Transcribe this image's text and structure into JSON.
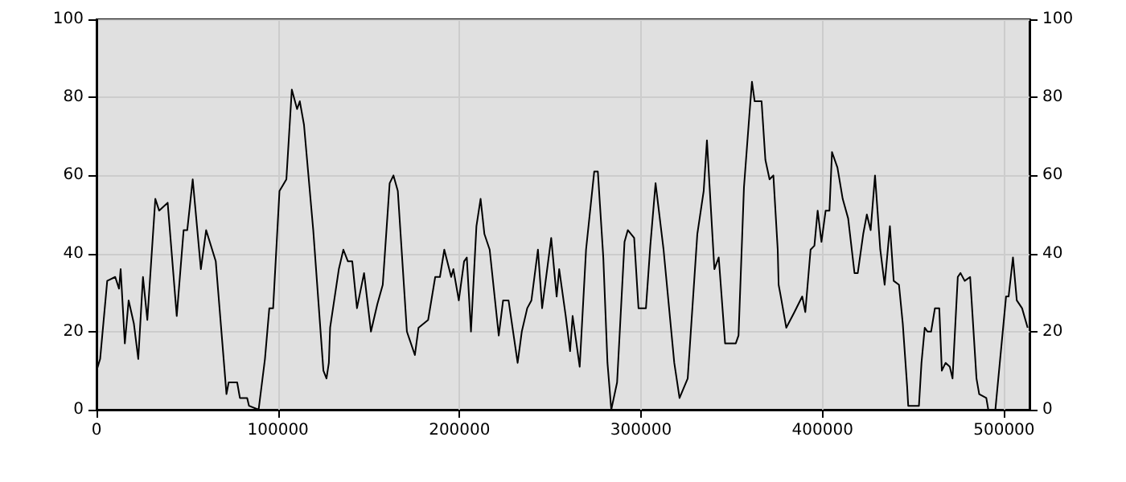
{
  "chart_data": {
    "type": "line",
    "marker": "none",
    "grid": true,
    "xlim": [
      0,
      514000
    ],
    "xticks": [
      0,
      100000,
      200000,
      300000,
      400000,
      500000
    ],
    "ylim": [
      0,
      100
    ],
    "yticks": [
      0,
      20,
      40,
      60,
      80,
      100
    ],
    "y2lim": [
      0,
      100
    ],
    "y2ticks": [
      0,
      20,
      40,
      60,
      80,
      100
    ],
    "series": [
      {
        "color": "#000000",
        "x": [
          0,
          2000,
          5900,
          10300,
          12400,
          13300,
          15600,
          17700,
          20600,
          23000,
          25600,
          28000,
          32400,
          34500,
          39200,
          44200,
          48000,
          50000,
          53000,
          57500,
          60400,
          65700,
          71600,
          72800,
          77500,
          79000,
          83000,
          84000,
          89300,
          92800,
          95200,
          97300,
          100800,
          104600,
          107600,
          110500,
          112000,
          114300,
          119400,
          125000,
          126700,
          128000,
          128700,
          133500,
          136000,
          138500,
          140900,
          143500,
          147400,
          151200,
          154700,
          157700,
          161500,
          163600,
          166000,
          171000,
          175400,
          177400,
          182700,
          186600,
          189200,
          191600,
          195400,
          196600,
          199600,
          202500,
          204000,
          206300,
          209300,
          211600,
          213700,
          216600,
          221600,
          224000,
          227000,
          232000,
          234300,
          237300,
          239600,
          243200,
          245500,
          250500,
          253500,
          254900,
          258500,
          260900,
          262300,
          266200,
          269700,
          274200,
          276200,
          279200,
          281500,
          283600,
          286800,
          290900,
          292700,
          296200,
          298600,
          302700,
          305100,
          308000,
          312400,
          318300,
          321200,
          325700,
          331000,
          334500,
          336300,
          340400,
          342800,
          346300,
          352200,
          353700,
          356700,
          359600,
          361100,
          362600,
          366400,
          368500,
          370800,
          372900,
          375300,
          375800,
          377000,
          380000,
          384500,
          388800,
          390500,
          393400,
          395500,
          397300,
          399400,
          401700,
          403800,
          405200,
          408200,
          411100,
          414100,
          417600,
          419400,
          422400,
          424400,
          426500,
          428900,
          431800,
          434200,
          437100,
          439200,
          442100,
          444200,
          446600,
          447200,
          453100,
          454500,
          456300,
          457800,
          459800,
          461900,
          464300,
          465700,
          467800,
          470100,
          471600,
          474500,
          476000,
          478300,
          481300,
          484800,
          486300,
          490200,
          491300,
          495200,
          501100,
          502500,
          504900,
          507000,
          509900,
          513000
        ],
        "values": [
          10,
          13,
          33,
          34,
          31,
          36,
          17,
          28,
          22,
          13,
          34,
          23,
          54,
          51,
          53,
          24,
          46,
          46,
          59,
          36,
          46,
          38,
          4,
          7,
          7,
          3,
          3,
          1,
          0,
          13,
          26,
          26,
          56,
          59,
          82,
          77,
          79,
          73,
          46,
          10,
          8,
          12,
          21,
          36,
          41,
          38,
          38,
          26,
          35,
          20,
          27,
          32,
          58,
          60,
          56,
          20,
          14,
          21,
          23,
          34,
          34,
          41,
          34,
          36,
          28,
          38,
          39,
          20,
          47,
          54,
          45,
          41,
          19,
          28,
          28,
          12,
          20,
          26,
          28,
          41,
          26,
          44,
          29,
          36,
          24,
          15,
          24,
          11,
          41,
          61,
          61,
          39,
          12,
          0,
          7,
          43,
          46,
          44,
          26,
          26,
          42,
          58,
          41,
          12,
          3,
          8,
          45,
          56,
          69,
          36,
          39,
          17,
          17,
          19,
          57,
          75,
          84,
          79,
          79,
          64,
          59,
          60,
          41,
          32,
          29,
          21,
          25,
          29,
          25,
          41,
          42,
          51,
          43,
          51,
          51,
          66,
          62,
          54,
          49,
          35,
          35,
          45,
          50,
          46,
          60,
          41,
          32,
          47,
          33,
          32,
          22,
          6,
          1,
          1,
          12,
          21,
          20,
          20,
          26,
          26,
          10,
          12,
          11,
          8,
          34,
          35,
          33,
          34,
          8,
          4,
          3,
          0,
          0,
          29,
          29,
          39,
          28,
          26,
          21
        ]
      }
    ]
  }
}
